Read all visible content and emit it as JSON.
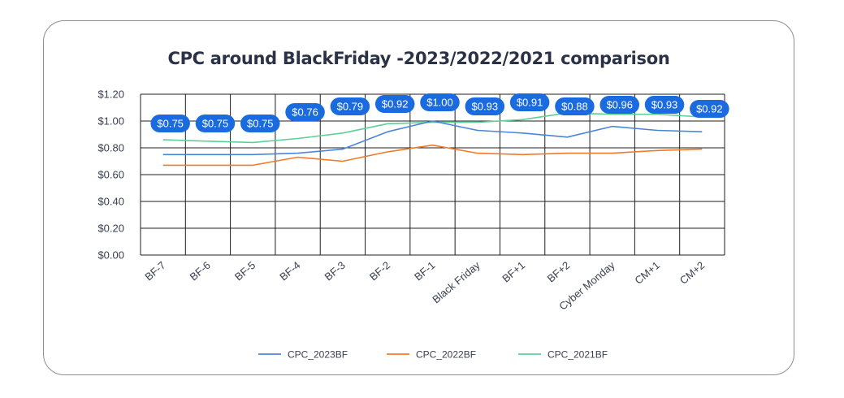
{
  "chart_data": {
    "type": "line",
    "title": "CPC around BlackFriday -2023/2022/2021 comparison",
    "xlabel": "",
    "ylabel": "",
    "ylim": [
      0,
      1.2
    ],
    "y_ticks": [
      "$0.00",
      "$0.20",
      "$0.40",
      "$0.60",
      "$0.80",
      "$1.00",
      "$1.20"
    ],
    "categories": [
      "BF-7",
      "BF-6",
      "BF-5",
      "BF-4",
      "BF-3",
      "BF-2",
      "BF-1",
      "Black Friday",
      "BF+1",
      "BF+2",
      "Cyber Monday",
      "CM+1",
      "CM+2"
    ],
    "grid": true,
    "legend_position": "bottom",
    "series": [
      {
        "name": "CPC_2023BF",
        "color": "#4a86d8",
        "values": [
          0.75,
          0.75,
          0.75,
          0.76,
          0.79,
          0.92,
          1.0,
          0.93,
          0.91,
          0.88,
          0.96,
          0.93,
          0.92
        ],
        "data_labels": [
          "$0.75",
          "$0.75",
          "$0.75",
          "$0.76",
          "$0.79",
          "$0.92",
          "$1.00",
          "$0.93",
          "$0.91",
          "$0.88",
          "$0.96",
          "$0.93",
          "$0.92"
        ]
      },
      {
        "name": "CPC_2022BF",
        "color": "#f07a2b",
        "values": [
          0.67,
          0.67,
          0.67,
          0.73,
          0.7,
          0.77,
          0.82,
          0.76,
          0.75,
          0.76,
          0.76,
          0.78,
          0.79
        ]
      },
      {
        "name": "CPC_2021BF",
        "color": "#5fcf96",
        "values": [
          0.86,
          0.85,
          0.84,
          0.87,
          0.91,
          0.98,
          0.99,
          0.99,
          1.01,
          1.06,
          1.05,
          1.05,
          1.03
        ]
      }
    ],
    "label_color": "#1a6be0"
  }
}
